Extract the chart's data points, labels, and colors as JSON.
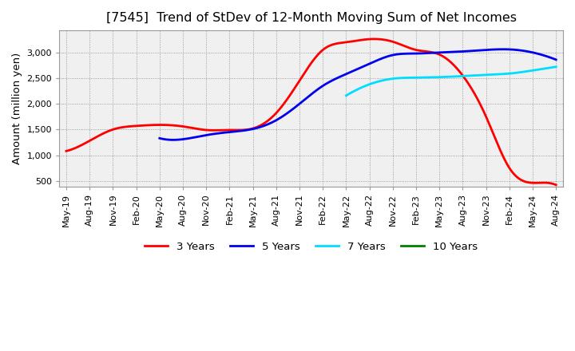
{
  "title": "[7545]  Trend of StDev of 12-Month Moving Sum of Net Incomes",
  "ylabel": "Amount (million yen)",
  "background_color": "#ffffff",
  "plot_bg_color": "#f0f0f0",
  "grid_color": "#888888",
  "title_fontsize": 11.5,
  "label_fontsize": 9.5,
  "tick_fontsize": 8,
  "ylim": [
    390,
    3430
  ],
  "yticks": [
    500,
    1000,
    1500,
    2000,
    2500,
    3000
  ],
  "ytick_labels": [
    "500",
    "1,000",
    "1,500",
    "2,000",
    "2,500",
    "3,000"
  ],
  "x_labels": [
    "May-19",
    "Aug-19",
    "Nov-19",
    "Feb-20",
    "May-20",
    "Aug-20",
    "Nov-20",
    "Feb-21",
    "May-21",
    "Aug-21",
    "Nov-21",
    "Feb-22",
    "May-22",
    "Aug-22",
    "Nov-22",
    "Feb-23",
    "May-23",
    "Aug-23",
    "Nov-23",
    "Feb-24",
    "May-24",
    "Aug-24"
  ],
  "series": {
    "3 Years": {
      "color": "#ff0000",
      "linewidth": 2.0,
      "y": [
        1080,
        1280,
        1500,
        1570,
        1590,
        1560,
        1490,
        1490,
        1520,
        1820,
        2450,
        3050,
        3200,
        3260,
        3210,
        3050,
        2960,
        2550,
        1750,
        750,
        460,
        420
      ]
    },
    "5 Years": {
      "color": "#0000ee",
      "linewidth": 2.0,
      "y": [
        null,
        null,
        null,
        null,
        1330,
        1310,
        1390,
        1450,
        1510,
        1680,
        2000,
        2350,
        2580,
        2780,
        2950,
        2980,
        3000,
        3020,
        3050,
        3060,
        3000,
        2860
      ]
    },
    "7 Years": {
      "color": "#00ddff",
      "linewidth": 2.0,
      "y": [
        null,
        null,
        null,
        null,
        null,
        null,
        null,
        null,
        null,
        null,
        null,
        null,
        2160,
        2380,
        2490,
        2510,
        2520,
        2540,
        2565,
        2590,
        2650,
        2720
      ]
    },
    "10 Years": {
      "color": "#008000",
      "linewidth": 2.0,
      "y": [
        null,
        null,
        null,
        null,
        null,
        null,
        null,
        null,
        null,
        null,
        null,
        null,
        null,
        null,
        null,
        null,
        null,
        null,
        null,
        null,
        null,
        null
      ]
    }
  },
  "legend_entries": [
    "3 Years",
    "5 Years",
    "7 Years",
    "10 Years"
  ],
  "legend_colors": [
    "#ff0000",
    "#0000ee",
    "#00ddff",
    "#008000"
  ]
}
